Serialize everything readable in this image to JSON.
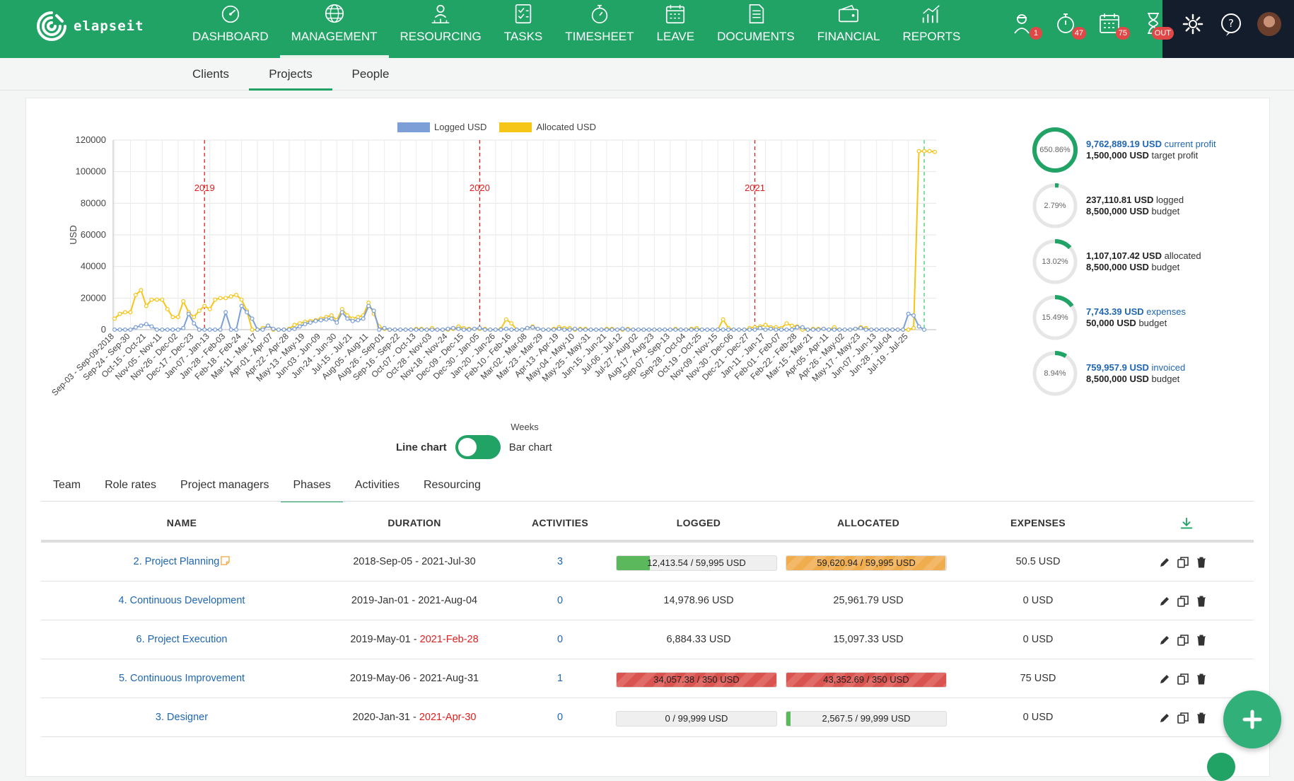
{
  "app": {
    "logo_text": "elapseit"
  },
  "nav": [
    {
      "label": "DASHBOARD",
      "icon": "dashboard-icon"
    },
    {
      "label": "MANAGEMENT",
      "icon": "globe-icon",
      "active": true
    },
    {
      "label": "RESOURCING",
      "icon": "people-icon"
    },
    {
      "label": "TASKS",
      "icon": "checklist-icon"
    },
    {
      "label": "TIMESHEET",
      "icon": "stopwatch-icon"
    },
    {
      "label": "LEAVE",
      "icon": "calendar-icon"
    },
    {
      "label": "DOCUMENTS",
      "icon": "document-icon"
    },
    {
      "label": "FINANCIAL",
      "icon": "wallet-icon"
    },
    {
      "label": "REPORTS",
      "icon": "chart-icon"
    }
  ],
  "notifications": [
    {
      "icon": "user-worker-icon",
      "badge": "1"
    },
    {
      "icon": "timer-icon",
      "badge": "47"
    },
    {
      "icon": "calendar-icon",
      "badge": "75"
    },
    {
      "icon": "hourglass-icon",
      "badge": "OUT"
    }
  ],
  "subnav": {
    "tabs": [
      "Clients",
      "Projects",
      "People"
    ],
    "active": "Projects"
  },
  "chart_data": {
    "type": "line",
    "legend": [
      "Logged USD",
      "Allocated USD"
    ],
    "colors": {
      "logged": "#7b9fd6",
      "allocated": "#f5c518"
    },
    "ylabel": "USD",
    "xlabel": "Weeks",
    "ylim": [
      0,
      120000
    ],
    "yticks": [
      "0",
      "20000",
      "40000",
      "60000",
      "80000",
      "100000",
      "120000"
    ],
    "xticks": [
      "Sep-03 - Sep-09-2018",
      "Sep-24 - Sep-30",
      "Oct-15 - Oct-21",
      "Nov-05 - Nov-11",
      "Nov-26 - Dec-02",
      "Dec-17 - Dec-23",
      "Jan-07 - Jan-13",
      "Jan-28 - Feb-03",
      "Feb-18 - Feb-24",
      "Mar-11 - Mar-17",
      "Apr-01 - Apr-07",
      "Apr-22 - Apr-28",
      "May-13 - May-19",
      "Jun-03 - Jun-09",
      "Jun-24 - Jun-30",
      "Jul-15 - Jul-21",
      "Aug-05 - Aug-11",
      "Aug-26 - Sep-01",
      "Sep-16 - Sep-22",
      "Oct-07 - Oct-13",
      "Oct-28 - Nov-03",
      "Nov-18 - Nov-24",
      "Dec-09 - Dec-15",
      "Dec-30 - Jan-05",
      "Jan-20 - Jan-26",
      "Feb-10 - Feb-16",
      "Mar-02 - Mar-08",
      "Mar-23 - Mar-29",
      "Apr-13 - Apr-19",
      "May-04 - May-10",
      "May-25 - May-31",
      "Jun-15 - Jun-21",
      "Jul-06 - Jul-12",
      "Jul-27 - Aug-02",
      "Aug-17 - Aug-23",
      "Sep-07 - Sep-13",
      "Sep-28 - Oct-04",
      "Oct-19 - Oct-25",
      "Nov-09 - Nov-15",
      "Nov-30 - Dec-06",
      "Dec-21 - Dec-27",
      "Jan-11 - Jan-17",
      "Feb-01 - Feb-07",
      "Feb-22 - Feb-28",
      "Mar-15 - Mar-21",
      "Apr-05 - Apr-11",
      "Apr-26 - May-02",
      "May-17 - May-23",
      "Jun-07 - Jun-13",
      "Jun-28 - Jul-04",
      "Jul-19 - Jul-25"
    ],
    "year_markers": [
      {
        "label": "2019",
        "index": 17
      },
      {
        "label": "2020",
        "index": 69
      },
      {
        "label": "2021",
        "index": 121
      }
    ],
    "series": [
      {
        "name": "Logged USD",
        "values": [
          0,
          0,
          0,
          0,
          1500,
          2500,
          3500,
          2000,
          0,
          0,
          0,
          0,
          0,
          1000,
          10000,
          4000,
          0,
          0,
          0,
          0,
          0,
          11000,
          0,
          0,
          15000,
          11000,
          7000,
          0,
          0,
          2500,
          500,
          0,
          0,
          0,
          500,
          2000,
          3500,
          4500,
          5500,
          6000,
          6500,
          7000,
          4500,
          11000,
          7000,
          5500,
          6000,
          7000,
          15000,
          12000,
          0,
          1000,
          0,
          0,
          0,
          0,
          0,
          0,
          0,
          0,
          0,
          0,
          0,
          500,
          1000,
          500,
          0,
          0,
          500,
          1000,
          0,
          0,
          0,
          0,
          500,
          0,
          0,
          0,
          1000,
          1500,
          500,
          0,
          0,
          0,
          500,
          0,
          0,
          500,
          0,
          0,
          0,
          0,
          0,
          0,
          0,
          0,
          500,
          0,
          0,
          0,
          0,
          0,
          0,
          0,
          0,
          0,
          0,
          0,
          0,
          0,
          0,
          0,
          0,
          0,
          0,
          0,
          0,
          0,
          0,
          0,
          0,
          0,
          1000,
          0,
          500,
          0,
          0,
          0,
          0,
          1500,
          1500,
          0,
          0,
          0,
          500,
          0,
          0,
          0,
          0,
          0,
          500,
          1000,
          0,
          0,
          0,
          0,
          0,
          0,
          0,
          0,
          10000,
          9000,
          2000,
          0
        ]
      },
      {
        "name": "Allocated USD",
        "values": [
          7000,
          10000,
          11000,
          11000,
          22000,
          25000,
          15000,
          19000,
          19000,
          19000,
          13000,
          8000,
          8000,
          18000,
          11000,
          8000,
          12000,
          15000,
          13000,
          19000,
          20000,
          20000,
          21000,
          22000,
          19000,
          12000,
          0,
          0,
          1000,
          2500,
          0,
          0,
          0,
          500,
          3000,
          4000,
          5000,
          5500,
          6000,
          7000,
          8000,
          9000,
          6000,
          13000,
          9000,
          7000,
          8000,
          9000,
          17000,
          10000,
          2000,
          500,
          0,
          0,
          0,
          0,
          0,
          500,
          500,
          0,
          1000,
          0,
          0,
          0,
          500,
          2000,
          1000,
          500,
          500,
          500,
          500,
          0,
          0,
          500,
          6500,
          4000,
          0,
          0,
          1000,
          2000,
          500,
          0,
          0,
          500,
          1500,
          1000,
          1000,
          0,
          500,
          500,
          0,
          0,
          0,
          500,
          500,
          0,
          0,
          500,
          0,
          0,
          0,
          0,
          0,
          0,
          0,
          0,
          500,
          0,
          0,
          500,
          1000,
          0,
          0,
          0,
          0,
          6500,
          1000,
          0,
          0,
          0,
          1000,
          1500,
          2000,
          3000,
          1500,
          1500,
          1000,
          4000,
          2500,
          2000,
          0,
          0,
          500,
          500,
          500,
          0,
          1500,
          0,
          0,
          0,
          500,
          1500,
          1000,
          0,
          0,
          0,
          0,
          0,
          0,
          0,
          0,
          1000,
          113000,
          113000,
          113000,
          112500
        ]
      }
    ]
  },
  "chart_ui": {
    "toggle_left": "Line chart",
    "toggle_right": "Bar chart"
  },
  "stats": [
    {
      "pct": "650.86%",
      "percent": 100,
      "color": "#21a366",
      "line1_value": "9,762,889.19 USD",
      "line1_label": "current profit",
      "line1_blue": true,
      "line2_value": "1,500,000 USD",
      "line2_label": "target profit"
    },
    {
      "pct": "2.79%",
      "percent": 2.79,
      "color": "#21a366",
      "line1_value": "237,110.81 USD",
      "line1_label": "logged",
      "line1_blue": false,
      "line2_value": "8,500,000 USD",
      "line2_label": "budget"
    },
    {
      "pct": "13.02%",
      "percent": 13.02,
      "color": "#21a366",
      "line1_value": "1,107,107.42 USD",
      "line1_label": "allocated",
      "line1_blue": false,
      "line2_value": "8,500,000 USD",
      "line2_label": "budget"
    },
    {
      "pct": "15.49%",
      "percent": 15.49,
      "color": "#21a366",
      "line1_value": "7,743.39 USD",
      "line1_label": "expenses",
      "line1_blue": true,
      "line2_value": "50,000 USD",
      "line2_label": "budget"
    },
    {
      "pct": "8.94%",
      "percent": 8.94,
      "color": "#21a366",
      "line1_value": "759,957.9 USD",
      "line1_label": "invoiced",
      "line1_blue": true,
      "line2_value": "8,500,000 USD",
      "line2_label": "budget"
    }
  ],
  "tabs": {
    "items": [
      "Team",
      "Role rates",
      "Project managers",
      "Phases",
      "Activities",
      "Resourcing"
    ],
    "active": "Phases"
  },
  "table": {
    "headers": {
      "name": "NAME",
      "duration": "DURATION",
      "activities": "ACTIVITIES",
      "logged": "LOGGED",
      "allocated": "ALLOCATED",
      "expenses": "EXPENSES"
    },
    "rows": [
      {
        "name": "2. Project Planning",
        "has_note": true,
        "dur_start": "2018-Sep-05 - ",
        "dur_end": "2021-Jul-30",
        "end_overdue": false,
        "activities": "3",
        "logged": "12,413.54 / 59,995 USD",
        "logged_bar": true,
        "logged_fill": 0.207,
        "logged_style": "green",
        "allocated": "59,620.94 / 59,995 USD",
        "allocated_bar": true,
        "allocated_fill": 0.994,
        "allocated_style": "orange",
        "expenses": "50.5 USD"
      },
      {
        "name": "4. Continuous Development",
        "has_note": false,
        "dur_start": "2019-Jan-01 - ",
        "dur_end": "2021-Aug-04",
        "end_overdue": false,
        "activities": "0",
        "logged": "14,978.96 USD",
        "logged_bar": false,
        "allocated": "25,961.79 USD",
        "allocated_bar": false,
        "expenses": "0 USD"
      },
      {
        "name": "6. Project Execution",
        "has_note": false,
        "dur_start": "2019-May-01 - ",
        "dur_end": "2021-Feb-28",
        "end_overdue": true,
        "activities": "0",
        "logged": "6,884.33 USD",
        "logged_bar": false,
        "allocated": "15,097.33 USD",
        "allocated_bar": false,
        "expenses": "0 USD"
      },
      {
        "name": "5. Continuous Improvement",
        "has_note": false,
        "dur_start": "2019-May-06 - ",
        "dur_end": "2021-Aug-31",
        "end_overdue": false,
        "activities": "1",
        "logged": "34,057.38 / 350 USD",
        "logged_bar": true,
        "logged_fill": 1,
        "logged_style": "red",
        "allocated": "43,352.69 / 350 USD",
        "allocated_bar": true,
        "allocated_fill": 1,
        "allocated_style": "red",
        "expenses": "75 USD"
      },
      {
        "name": "3. Designer",
        "has_note": false,
        "dur_start": "2020-Jan-31 - ",
        "dur_end": "2021-Apr-30",
        "end_overdue": true,
        "activities": "0",
        "logged": "0 / 99,999 USD",
        "logged_bar": true,
        "logged_fill": 0,
        "logged_style": "green",
        "allocated": "2,567.5 / 99,999 USD",
        "allocated_bar": true,
        "allocated_fill": 0.026,
        "allocated_style": "green",
        "expenses": "0 USD"
      }
    ]
  }
}
